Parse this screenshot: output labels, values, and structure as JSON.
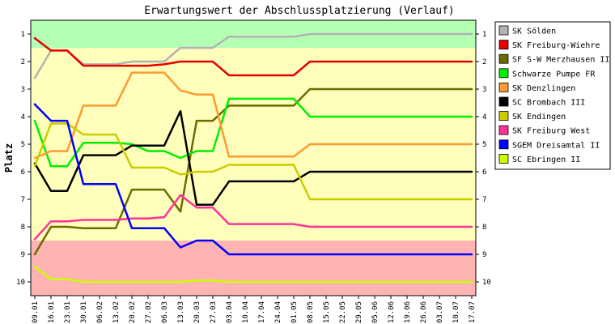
{
  "chart_data": {
    "type": "line",
    "title": "Erwartungswert der Abschlussplatzierung (Verlauf)",
    "ylabel": "Platz",
    "xlabel": "",
    "ylim": [
      10.5,
      0.5
    ],
    "y_inverted": true,
    "y_ticks": [
      1,
      2,
      3,
      4,
      5,
      6,
      7,
      8,
      9,
      10
    ],
    "categories": [
      "09.01",
      "16.01",
      "23.01",
      "30.01",
      "06.02",
      "13.02",
      "20.02",
      "27.02",
      "06.03",
      "13.03",
      "20.03",
      "27.03",
      "03.04",
      "10.04",
      "17.04",
      "24.04",
      "01.05",
      "08.05",
      "15.05",
      "22.05",
      "29.05",
      "05.06",
      "12.06",
      "19.06",
      "26.06",
      "03.07",
      "10.07",
      "17.07"
    ],
    "bands": [
      {
        "from": 0.5,
        "to": 1.5,
        "color": "#b3ffb3"
      },
      {
        "from": 1.5,
        "to": 8.5,
        "color": "#ffffbb"
      },
      {
        "from": 8.5,
        "to": 10.5,
        "color": "#ffb3b3"
      }
    ],
    "legend_position": "right",
    "grid": false,
    "series": [
      {
        "name": "SK Sölden",
        "color": "#b3b3b3",
        "values": [
          2.6,
          1.6,
          1.6,
          2.1,
          2.1,
          2.1,
          2.0,
          2.0,
          2.0,
          1.5,
          1.5,
          1.5,
          1.1,
          1.1,
          1.1,
          1.1,
          1.1,
          1.0,
          1.0,
          1.0,
          1.0,
          1.0,
          1.0,
          1.0,
          1.0,
          1.0,
          1.0,
          1.0
        ]
      },
      {
        "name": "SK Freiburg-Wiehre",
        "color": "#e60000",
        "values": [
          1.15,
          1.6,
          1.6,
          2.15,
          2.15,
          2.15,
          2.15,
          2.15,
          2.1,
          2.0,
          2.0,
          2.0,
          2.5,
          2.5,
          2.5,
          2.5,
          2.5,
          2.0,
          2.0,
          2.0,
          2.0,
          2.0,
          2.0,
          2.0,
          2.0,
          2.0,
          2.0,
          2.0
        ]
      },
      {
        "name": "SF S-W Merzhausen II",
        "color": "#6b6b00",
        "values": [
          9.0,
          8.0,
          8.0,
          8.05,
          8.05,
          8.05,
          6.65,
          6.65,
          6.65,
          7.45,
          4.15,
          4.15,
          3.6,
          3.6,
          3.6,
          3.6,
          3.6,
          3.0,
          3.0,
          3.0,
          3.0,
          3.0,
          3.0,
          3.0,
          3.0,
          3.0,
          3.0,
          3.0
        ]
      },
      {
        "name": "Schwarze Pumpe FR",
        "color": "#00ee00",
        "values": [
          4.15,
          5.8,
          5.8,
          4.95,
          4.95,
          4.95,
          5.0,
          5.25,
          5.25,
          5.5,
          5.25,
          5.25,
          3.35,
          3.35,
          3.35,
          3.35,
          3.35,
          4.0,
          4.0,
          4.0,
          4.0,
          4.0,
          4.0,
          4.0,
          4.0,
          4.0,
          4.0,
          4.0
        ]
      },
      {
        "name": "SK Denzlingen",
        "color": "#ff9933",
        "values": [
          5.5,
          5.25,
          5.25,
          3.6,
          3.6,
          3.6,
          2.4,
          2.4,
          2.4,
          3.05,
          3.2,
          3.2,
          5.45,
          5.45,
          5.45,
          5.45,
          5.45,
          5.0,
          5.0,
          5.0,
          5.0,
          5.0,
          5.0,
          5.0,
          5.0,
          5.0,
          5.0,
          5.0
        ]
      },
      {
        "name": "SC Brombach III",
        "color": "#000000",
        "values": [
          5.7,
          6.7,
          6.7,
          5.4,
          5.4,
          5.4,
          5.05,
          5.05,
          5.05,
          3.8,
          7.2,
          7.2,
          6.35,
          6.35,
          6.35,
          6.35,
          6.35,
          6.0,
          6.0,
          6.0,
          6.0,
          6.0,
          6.0,
          6.0,
          6.0,
          6.0,
          6.0,
          6.0
        ]
      },
      {
        "name": "SK Endingen",
        "color": "#cccc00",
        "values": [
          5.8,
          4.25,
          4.25,
          4.65,
          4.65,
          4.65,
          5.85,
          5.85,
          5.85,
          6.1,
          6.0,
          6.0,
          5.75,
          5.75,
          5.75,
          5.75,
          5.75,
          7.0,
          7.0,
          7.0,
          7.0,
          7.0,
          7.0,
          7.0,
          7.0,
          7.0,
          7.0,
          7.0
        ]
      },
      {
        "name": "SK Freiburg West",
        "color": "#ff3399",
        "values": [
          8.45,
          7.8,
          7.8,
          7.75,
          7.75,
          7.75,
          7.7,
          7.7,
          7.65,
          6.85,
          7.3,
          7.3,
          7.9,
          7.9,
          7.9,
          7.9,
          7.9,
          8.0,
          8.0,
          8.0,
          8.0,
          8.0,
          8.0,
          8.0,
          8.0,
          8.0,
          8.0,
          8.0
        ]
      },
      {
        "name": "SGEM Dreisamtal II",
        "color": "#0000ff",
        "values": [
          3.55,
          4.15,
          4.15,
          6.45,
          6.45,
          6.45,
          8.05,
          8.05,
          8.05,
          8.75,
          8.5,
          8.5,
          9.0,
          9.0,
          9.0,
          9.0,
          9.0,
          9.0,
          9.0,
          9.0,
          9.0,
          9.0,
          9.0,
          9.0,
          9.0,
          9.0,
          9.0,
          9.0
        ]
      },
      {
        "name": "SC Ebringen II",
        "color": "#ccff00",
        "values": [
          9.45,
          9.9,
          9.9,
          10.0,
          10.0,
          10.0,
          10.0,
          10.0,
          10.0,
          10.0,
          9.95,
          9.95,
          10.0,
          10.0,
          10.0,
          10.0,
          10.0,
          10.0,
          10.0,
          10.0,
          10.0,
          10.0,
          10.0,
          10.0,
          10.0,
          10.0,
          10.0,
          10.0
        ]
      }
    ]
  }
}
